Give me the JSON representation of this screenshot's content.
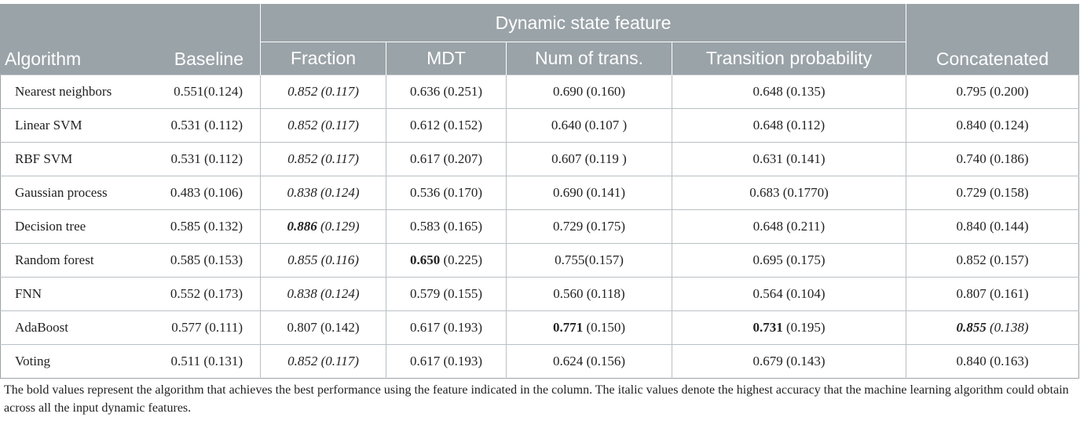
{
  "table": {
    "group_header": "Dynamic state feature",
    "columns": [
      "Algorithm",
      "Baseline",
      "Fraction",
      "MDT",
      "Num of trans.",
      "Transition probability",
      "Concatenated"
    ],
    "rows": [
      {
        "algorithm": "Nearest neighbors",
        "cells": [
          {
            "text": "0.551(0.124)"
          },
          {
            "text": "0.852 (0.117)",
            "italic": true
          },
          {
            "text": "0.636 (0.251)"
          },
          {
            "text": "0.690 (0.160)"
          },
          {
            "text": "0.648 (0.135)"
          },
          {
            "text": "0.795 (0.200)"
          }
        ]
      },
      {
        "algorithm": "Linear SVM",
        "cells": [
          {
            "text": "0.531 (0.112)"
          },
          {
            "text": "0.852 (0.117)",
            "italic": true
          },
          {
            "text": "0.612 (0.152)"
          },
          {
            "text": "0.640 (0.107 )"
          },
          {
            "text": "0.648 (0.112)"
          },
          {
            "text": "0.840 (0.124)"
          }
        ]
      },
      {
        "algorithm": "RBF SVM",
        "cells": [
          {
            "text": "0.531 (0.112)"
          },
          {
            "text": "0.852 (0.117)",
            "italic": true
          },
          {
            "text": "0.617 (0.207)"
          },
          {
            "text": "0.607 (0.119 )"
          },
          {
            "text": "0.631 (0.141)"
          },
          {
            "text": "0.740 (0.186)"
          }
        ]
      },
      {
        "algorithm": "Gaussian process",
        "cells": [
          {
            "text": "0.483 (0.106)"
          },
          {
            "text": "0.838 (0.124)",
            "italic": true
          },
          {
            "text": "0.536 (0.170)"
          },
          {
            "text": "0.690 (0.141)"
          },
          {
            "text": "0.683 (0.1770)"
          },
          {
            "text": "0.729 (0.158)"
          }
        ]
      },
      {
        "algorithm": "Decision tree",
        "cells": [
          {
            "text": "0.585 (0.132)"
          },
          {
            "value": "0.886",
            "sd": " (0.129)",
            "italic": true,
            "bold_value": true
          },
          {
            "text": "0.583 (0.165)"
          },
          {
            "text": "0.729 (0.175)"
          },
          {
            "text": "0.648 (0.211)"
          },
          {
            "text": "0.840 (0.144)"
          }
        ]
      },
      {
        "algorithm": "Random forest",
        "cells": [
          {
            "text": "0.585 (0.153)"
          },
          {
            "text": "0.855 (0.116)",
            "italic": true
          },
          {
            "value": "0.650",
            "sd": " (0.225)",
            "bold_value": true
          },
          {
            "text": "0.755(0.157)"
          },
          {
            "text": "0.695 (0.175)"
          },
          {
            "text": "0.852 (0.157)"
          }
        ]
      },
      {
        "algorithm": "FNN",
        "cells": [
          {
            "text": "0.552 (0.173)"
          },
          {
            "text": "0.838 (0.124)",
            "italic": true
          },
          {
            "text": "0.579 (0.155)"
          },
          {
            "text": "0.560 (0.118)"
          },
          {
            "text": "0.564 (0.104)"
          },
          {
            "text": "0.807 (0.161)"
          }
        ]
      },
      {
        "algorithm": "AdaBoost",
        "cells": [
          {
            "text": "0.577 (0.111)"
          },
          {
            "text": "0.807 (0.142)"
          },
          {
            "text": "0.617 (0.193)"
          },
          {
            "value": "0.771",
            "sd": " (0.150)",
            "bold_value": true
          },
          {
            "value": "0.731",
            "sd": " (0.195)",
            "bold_value": true
          },
          {
            "value": "0.855",
            "sd": " (0.138)",
            "italic": true,
            "bold_value": true
          }
        ]
      },
      {
        "algorithm": "Voting",
        "cells": [
          {
            "text": "0.511 (0.131)"
          },
          {
            "text": "0.852 (0.117)",
            "italic": true
          },
          {
            "text": "0.617 (0.193)"
          },
          {
            "text": "0.624 (0.156)"
          },
          {
            "text": "0.679 (0.143)"
          },
          {
            "text": "0.840 (0.163)"
          }
        ]
      }
    ]
  },
  "footnote": "The bold values represent the algorithm that achieves the best performance using the feature indicated in the column. The italic values denote the highest accuracy that the machine learning algorithm could obtain across all the input dynamic features."
}
